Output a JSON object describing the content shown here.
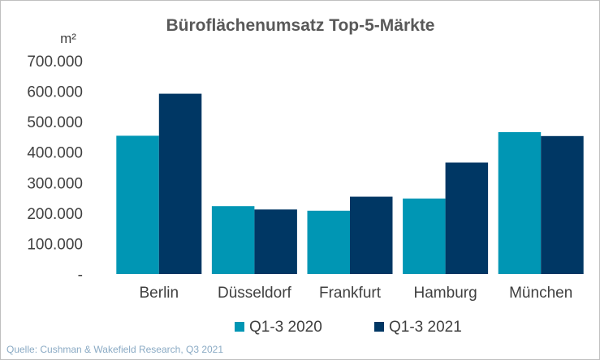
{
  "chart_data": {
    "type": "bar",
    "title": "Büroflächenumsatz  Top-5-Märkte",
    "ylabel": "m²",
    "ylim": [
      0,
      700000
    ],
    "yticks": [
      {
        "value": 0,
        "label": "-"
      },
      {
        "value": 100000,
        "label": "100.000"
      },
      {
        "value": 200000,
        "label": "200.000"
      },
      {
        "value": 300000,
        "label": "300.000"
      },
      {
        "value": 400000,
        "label": "400.000"
      },
      {
        "value": 500000,
        "label": "500.000"
      },
      {
        "value": 600000,
        "label": "600.000"
      },
      {
        "value": 700000,
        "label": "700.000"
      }
    ],
    "categories": [
      "Berlin",
      "Düsseldorf",
      "Frankfurt",
      "Hamburg",
      "München"
    ],
    "series": [
      {
        "name": "Q1-3 2020",
        "color": "#0096b4",
        "values": [
          454000,
          223000,
          208000,
          248000,
          466000
        ]
      },
      {
        "name": "Q1-3 2021",
        "color": "#003764",
        "values": [
          592000,
          212000,
          254000,
          366000,
          453000
        ]
      }
    ],
    "grid": false,
    "legend_position": "bottom"
  },
  "source": "Quelle: Cushman & Wakefield Research, Q3 2021"
}
